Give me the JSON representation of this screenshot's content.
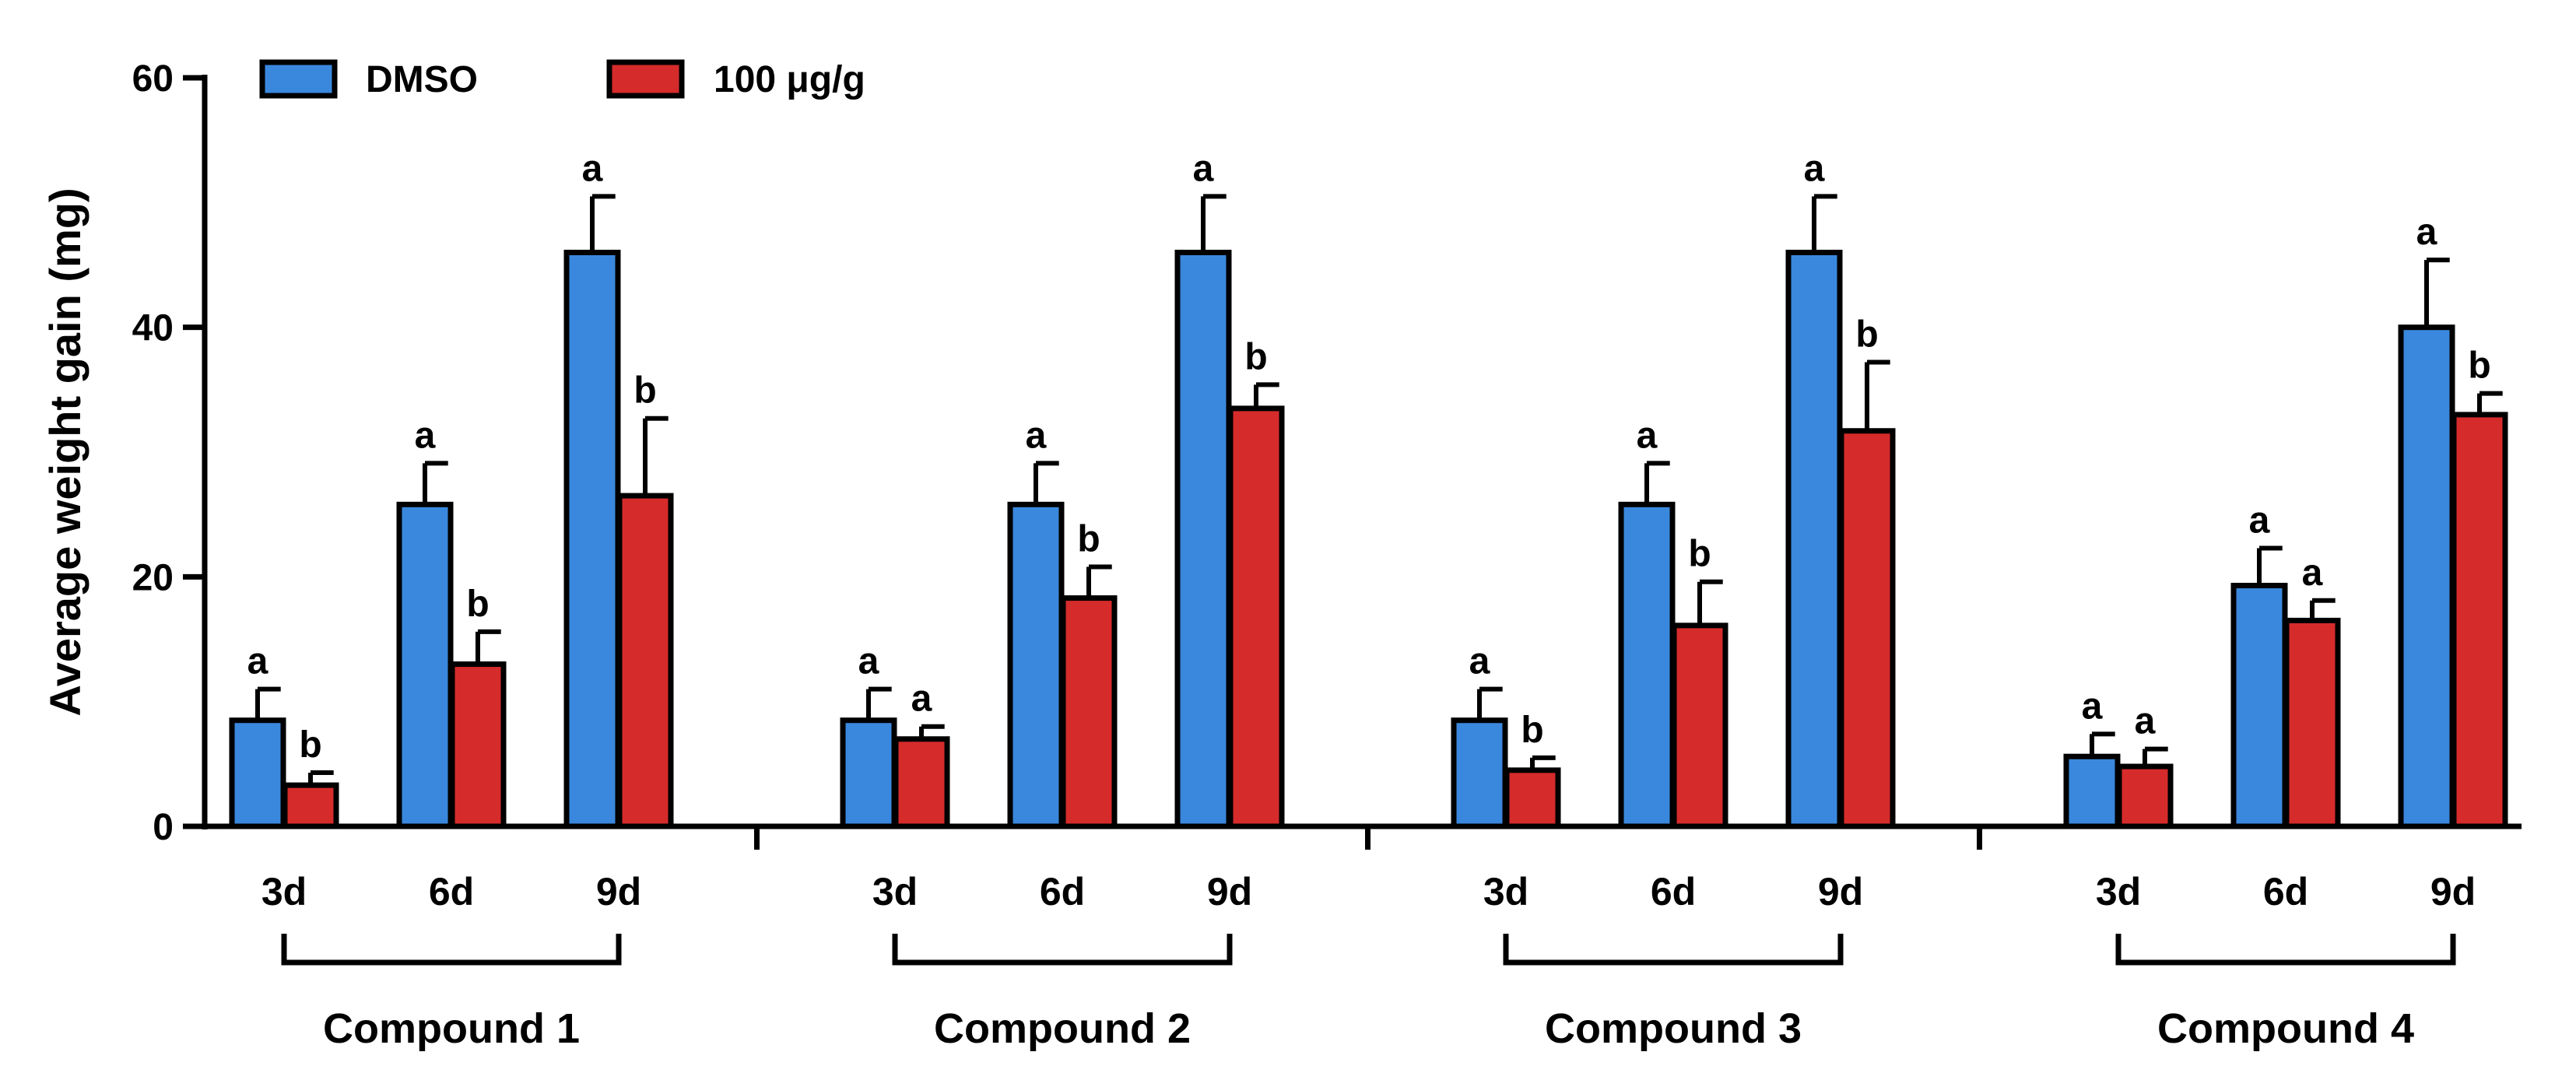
{
  "chart_data": {
    "type": "bar",
    "ylabel": "Average weight gain (mg)",
    "ylim": [
      0,
      60
    ],
    "yticks": [
      0,
      20,
      40,
      60
    ],
    "legend_position": "top-left",
    "series": [
      {
        "name": "DMSO",
        "color": "#3a88dd"
      },
      {
        "name": "100 μg/g",
        "color": "#d62b2b"
      }
    ],
    "groups": [
      {
        "name": "Compound 1",
        "categories": [
          "3d",
          "6d",
          "9d"
        ],
        "values": {
          "DMSO": [
            8.5,
            25.8,
            46.0
          ],
          "100 μg/g": [
            3.3,
            13.0,
            26.5
          ]
        },
        "errors": {
          "DMSO": [
            2.5,
            3.3,
            4.5
          ],
          "100 μg/g": [
            1.0,
            2.6,
            6.2
          ]
        },
        "letters": {
          "DMSO": [
            "a",
            "a",
            "a"
          ],
          "100 μg/g": [
            "b",
            "b",
            "b"
          ]
        }
      },
      {
        "name": "Compound 2",
        "categories": [
          "3d",
          "6d",
          "9d"
        ],
        "values": {
          "DMSO": [
            8.5,
            25.8,
            46.0
          ],
          "100 μg/g": [
            7.0,
            18.3,
            33.5
          ]
        },
        "errors": {
          "DMSO": [
            2.5,
            3.3,
            4.5
          ],
          "100 μg/g": [
            1.0,
            2.5,
            1.9
          ]
        },
        "letters": {
          "DMSO": [
            "a",
            "a",
            "a"
          ],
          "100 μg/g": [
            "a",
            "b",
            "b"
          ]
        }
      },
      {
        "name": "Compound 3",
        "categories": [
          "3d",
          "6d",
          "9d"
        ],
        "values": {
          "DMSO": [
            8.5,
            25.8,
            46.0
          ],
          "100 μg/g": [
            4.5,
            16.1,
            31.7
          ]
        },
        "errors": {
          "DMSO": [
            2.5,
            3.3,
            4.5
          ],
          "100 μg/g": [
            1.0,
            3.5,
            5.5
          ]
        },
        "letters": {
          "DMSO": [
            "a",
            "a",
            "a"
          ],
          "100 μg/g": [
            "b",
            "b",
            "b"
          ]
        }
      },
      {
        "name": "Compound 4",
        "categories": [
          "3d",
          "6d",
          "9d"
        ],
        "values": {
          "DMSO": [
            5.6,
            19.3,
            40.0
          ],
          "100 μg/g": [
            4.8,
            16.5,
            33.0
          ]
        },
        "errors": {
          "DMSO": [
            1.8,
            3.0,
            5.4
          ],
          "100 μg/g": [
            1.4,
            1.6,
            1.7
          ]
        },
        "letters": {
          "DMSO": [
            "a",
            "a",
            "a"
          ],
          "100 μg/g": [
            "a",
            "a",
            "b"
          ]
        }
      }
    ]
  }
}
